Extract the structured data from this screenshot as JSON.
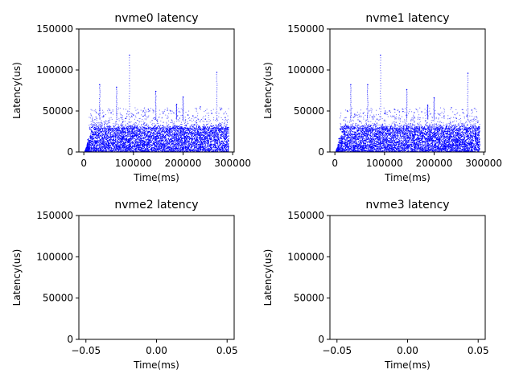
{
  "chart_data": [
    {
      "type": "scatter",
      "title": "nvme0 latency",
      "xlabel": "Time(ms)",
      "ylabel": "Latency(us)",
      "xlim": [
        -10000,
        303000
      ],
      "ylim": [
        0,
        150000
      ],
      "xticks": [
        0,
        100000,
        200000,
        300000
      ],
      "xtick_labels": [
        "0",
        "100000",
        "200000",
        "300000"
      ],
      "yticks": [
        0,
        50000,
        100000,
        150000
      ],
      "ytick_labels": [
        "0",
        "50000",
        "100000",
        "150000"
      ],
      "color": "#0000ff",
      "grid": false,
      "points": [
        [
          3000,
          2000
        ],
        [
          8000,
          15000
        ],
        [
          12000,
          28000
        ],
        [
          18000,
          38000
        ],
        [
          25000,
          48000
        ],
        [
          32000,
          82000
        ],
        [
          40000,
          44000
        ],
        [
          50000,
          38000
        ],
        [
          55000,
          48000
        ],
        [
          66000,
          79000
        ],
        [
          75000,
          42000
        ],
        [
          85000,
          41000
        ],
        [
          92000,
          118000
        ],
        [
          100000,
          45000
        ],
        [
          110000,
          48000
        ],
        [
          120000,
          50000
        ],
        [
          130000,
          52000
        ],
        [
          145000,
          74000
        ],
        [
          160000,
          47000
        ],
        [
          175000,
          50000
        ],
        [
          187000,
          58000
        ],
        [
          200000,
          67000
        ],
        [
          210000,
          45000
        ],
        [
          220000,
          44000
        ],
        [
          235000,
          55000
        ],
        [
          245000,
          40000
        ],
        [
          258000,
          47000
        ],
        [
          268000,
          97000
        ],
        [
          276000,
          52000
        ],
        [
          285000,
          42000
        ],
        [
          290000,
          30000
        ]
      ]
    },
    {
      "type": "scatter",
      "title": "nvme1 latency",
      "xlabel": "Time(ms)",
      "ylabel": "Latency(us)",
      "xlim": [
        -10000,
        303000
      ],
      "ylim": [
        0,
        150000
      ],
      "xticks": [
        0,
        100000,
        200000,
        300000
      ],
      "xtick_labels": [
        "0",
        "100000",
        "200000",
        "300000"
      ],
      "yticks": [
        0,
        50000,
        100000,
        150000
      ],
      "ytick_labels": [
        "0",
        "50000",
        "100000",
        "150000"
      ],
      "color": "#0000ff",
      "grid": false,
      "points": [
        [
          3000,
          2000
        ],
        [
          8000,
          16000
        ],
        [
          12000,
          27000
        ],
        [
          18000,
          39000
        ],
        [
          25000,
          50000
        ],
        [
          32000,
          82000
        ],
        [
          40000,
          46000
        ],
        [
          50000,
          37000
        ],
        [
          57000,
          47000
        ],
        [
          66000,
          82000
        ],
        [
          75000,
          43000
        ],
        [
          85000,
          40000
        ],
        [
          92000,
          118000
        ],
        [
          100000,
          47000
        ],
        [
          110000,
          50000
        ],
        [
          120000,
          52000
        ],
        [
          130000,
          49000
        ],
        [
          145000,
          76000
        ],
        [
          160000,
          48000
        ],
        [
          175000,
          49000
        ],
        [
          187000,
          57000
        ],
        [
          200000,
          66000
        ],
        [
          210000,
          46000
        ],
        [
          220000,
          43000
        ],
        [
          235000,
          54000
        ],
        [
          245000,
          41000
        ],
        [
          258000,
          48000
        ],
        [
          268000,
          96000
        ],
        [
          276000,
          51000
        ],
        [
          285000,
          43000
        ],
        [
          290000,
          31000
        ]
      ]
    },
    {
      "type": "scatter",
      "title": "nvme2 latency",
      "xlabel": "Time(ms)",
      "ylabel": "Latency(us)",
      "xlim": [
        -0.055,
        0.055
      ],
      "ylim": [
        0,
        150000
      ],
      "xticks": [
        -0.05,
        0.0,
        0.05
      ],
      "xtick_labels": [
        "−0.05",
        "0.00",
        "0.05"
      ],
      "yticks": [
        0,
        50000,
        100000,
        150000
      ],
      "ytick_labels": [
        "0",
        "50000",
        "100000",
        "150000"
      ],
      "color": "#0000ff",
      "grid": false,
      "points": []
    },
    {
      "type": "scatter",
      "title": "nvme3 latency",
      "xlabel": "Time(ms)",
      "ylabel": "Latency(us)",
      "xlim": [
        -0.055,
        0.055
      ],
      "ylim": [
        0,
        150000
      ],
      "xticks": [
        -0.05,
        0.0,
        0.05
      ],
      "xtick_labels": [
        "−0.05",
        "0.00",
        "0.05"
      ],
      "yticks": [
        0,
        50000,
        100000,
        150000
      ],
      "ytick_labels": [
        "0",
        "50000",
        "100000",
        "150000"
      ],
      "color": "#0000ff",
      "grid": false,
      "points": []
    }
  ]
}
